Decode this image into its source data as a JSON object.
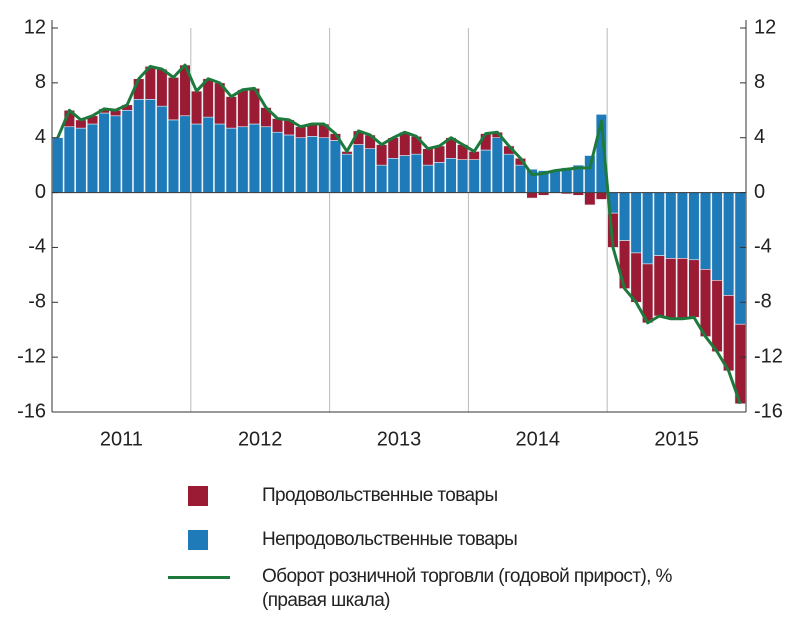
{
  "chart_data": {
    "type": "bar_line",
    "categories": [
      null,
      null,
      null,
      null,
      null,
      "2011",
      null,
      null,
      null,
      null,
      null,
      null,
      null,
      null,
      null,
      null,
      null,
      "2012",
      null,
      null,
      null,
      null,
      null,
      null,
      null,
      null,
      null,
      null,
      null,
      "2013",
      null,
      null,
      null,
      null,
      null,
      null,
      null,
      null,
      null,
      null,
      null,
      "2014",
      null,
      null,
      null,
      null,
      null,
      null,
      null,
      null,
      null,
      null,
      null,
      "2015",
      null,
      null,
      null,
      null,
      null,
      null
    ],
    "series": [
      {
        "name": "Продовольственные товары",
        "color": "#9b1b34",
        "stack": true,
        "values": [
          0,
          1.2,
          0.6,
          0.6,
          0.3,
          0.4,
          0.4,
          1.5,
          2.4,
          2.7,
          3.1,
          3.7,
          2.4,
          2.8,
          3.0,
          2.3,
          2.7,
          2.6,
          1.4,
          1.0,
          1.1,
          0.8,
          0.9,
          1.0,
          0.5,
          0.2,
          1.0,
          1.0,
          1.5,
          1.5,
          1.7,
          1.3,
          1.2,
          1.2,
          1.5,
          1.1,
          0.6,
          1.2,
          0.4,
          0.6,
          0.5,
          -0.4,
          -0.2,
          0,
          -0.1,
          -0.2,
          -0.9,
          -0.5,
          -2.5,
          -3.5,
          -3.6,
          -4.3,
          -4.4,
          -4.4,
          -4.4,
          -4.2,
          -4.9,
          -5.2,
          -5.5,
          -5.8
        ]
      },
      {
        "name": "Непродовольственные товары",
        "color": "#1f7ab8",
        "stack": true,
        "values": [
          4.0,
          4.8,
          4.7,
          5.0,
          5.8,
          5.6,
          6.0,
          6.8,
          6.8,
          6.3,
          5.3,
          5.6,
          5.0,
          5.5,
          5.0,
          4.7,
          4.8,
          5.0,
          4.8,
          4.4,
          4.2,
          4.0,
          4.1,
          4.0,
          3.8,
          2.8,
          3.5,
          3.2,
          2.0,
          2.5,
          2.7,
          2.8,
          2.0,
          2.2,
          2.5,
          2.4,
          2.4,
          3.1,
          4.0,
          2.8,
          2.0,
          1.7,
          1.6,
          1.6,
          1.8,
          2.0,
          2.7,
          5.7,
          -1.5,
          -3.5,
          -4.4,
          -5.2,
          -4.6,
          -4.8,
          -4.8,
          -4.9,
          -5.6,
          -6.4,
          -7.5,
          -9.6
        ]
      },
      {
        "name": "Оборот розничной торговли (годовой прирост), % (правая шкала)",
        "color": "#1e7a3c",
        "axis": "y2",
        "values": [
          4.0,
          6.0,
          5.3,
          5.6,
          6.1,
          6.0,
          6.4,
          8.3,
          9.2,
          9.0,
          8.4,
          9.3,
          7.4,
          8.3,
          8.0,
          7.0,
          7.5,
          7.6,
          6.2,
          5.4,
          5.3,
          4.8,
          5.0,
          5.0,
          4.3,
          3.0,
          4.5,
          4.2,
          3.5,
          4.0,
          4.4,
          4.1,
          3.2,
          3.4,
          4.0,
          3.5,
          3.0,
          4.3,
          4.4,
          3.4,
          2.5,
          1.3,
          1.4,
          1.6,
          1.7,
          1.8,
          1.8,
          5.2,
          -4.0,
          -7.0,
          -8.0,
          -9.5,
          -9.0,
          -9.2,
          -9.2,
          -9.1,
          -10.5,
          -11.6,
          -13.0,
          -15.4
        ]
      }
    ],
    "ylim": [
      -16,
      12
    ],
    "yticks": [
      -16,
      -12,
      -8,
      -4,
      0,
      4,
      8,
      12
    ],
    "y2lim": [
      -16,
      12
    ],
    "y2ticks": [
      -16,
      -12,
      -8,
      -4,
      0,
      4,
      8,
      12
    ]
  }
}
